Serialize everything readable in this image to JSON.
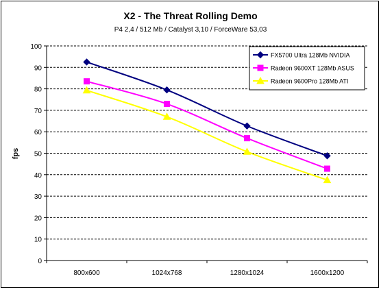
{
  "chart_data": {
    "type": "line",
    "title": "X2 - The Threat Rolling Demo",
    "subtitle": "P4 2,4 / 512 Mb / Catalyst 3,10 / ForceWare 53,03",
    "ylabel": "fps",
    "xlabel": "",
    "ylim": [
      0,
      100
    ],
    "yticks": [
      0,
      10,
      20,
      30,
      40,
      50,
      60,
      70,
      80,
      90,
      100
    ],
    "grid": true,
    "legend_position": "top-right",
    "categories": [
      "800x600",
      "1024x768",
      "1280x1024",
      "1600x1200"
    ],
    "series": [
      {
        "name": "FX5700 Ultra 128Mb NVIDIA",
        "values": [
          92.5,
          79.5,
          62.7,
          48.8
        ],
        "color": "#000080",
        "marker": "diamond"
      },
      {
        "name": "Radeon 9600XT 128Mb ASUS",
        "values": [
          83.5,
          73,
          57,
          42.8
        ],
        "color": "#ff00ff",
        "marker": "square"
      },
      {
        "name": "Radeon 9600Pro 128Mb ATI",
        "values": [
          79.3,
          67,
          50.7,
          37.5
        ],
        "color": "#ffff00",
        "marker": "triangle"
      }
    ]
  }
}
